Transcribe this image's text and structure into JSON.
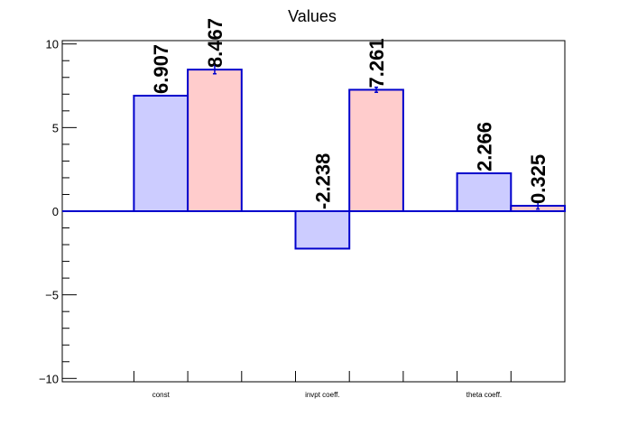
{
  "chart_data": {
    "type": "bar",
    "title": "Values",
    "xlabel": "",
    "ylabel": "",
    "categories": [
      "const",
      "invpt coeff.",
      "theta coeff."
    ],
    "ylim": [
      -10.2,
      10.2
    ],
    "yticks": [
      -10,
      -5,
      0,
      5,
      10
    ],
    "ytick_labels": [
      "−10",
      "−5",
      "0",
      "5",
      "10"
    ],
    "grid": false,
    "series": [
      {
        "values": [
          6.907,
          -2.238,
          2.266
        ],
        "labels": [
          "6.907",
          "-2.238",
          "2.266"
        ],
        "fill": "#ccccff",
        "stroke": "#0000cc",
        "errors": [
          0,
          0,
          0
        ]
      },
      {
        "values": [
          8.467,
          7.261,
          0.325
        ],
        "labels": [
          "8.467",
          "7.261",
          "0.325"
        ],
        "fill": "#ffcccc",
        "stroke": "#0000cc",
        "errors": [
          0.25,
          0.15,
          0.2
        ]
      }
    ]
  }
}
